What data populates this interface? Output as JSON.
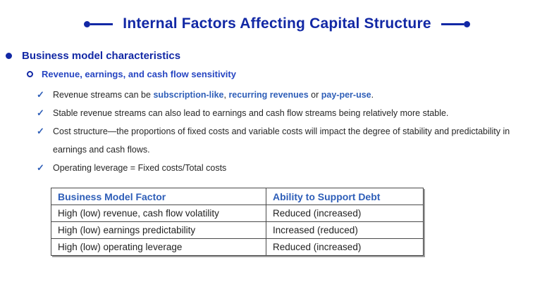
{
  "slide": {
    "title": "Internal Factors Affecting Capital Structure"
  },
  "colors": {
    "title_navy": "#1228A5",
    "subheading_blue": "#2746C2",
    "accent_blue": "#2E5EB8",
    "body_text": "#262626",
    "table_border": "#4A4A4A",
    "table_shadow": "#9E9E9E"
  },
  "icons": {
    "check": "✓",
    "level1_bullet": "filled-circle",
    "level2_bullet": "hollow-circle",
    "title_ornament": "dot-and-line"
  },
  "bullets": {
    "level1": "Business model characteristics",
    "level2": "Revenue, earnings, and cash flow sensitivity",
    "checks": [
      {
        "segments": [
          {
            "t": "Revenue streams can be ",
            "b": false
          },
          {
            "t": "subscription-like",
            "b": true
          },
          {
            "t": ", ",
            "b": false
          },
          {
            "t": "recurring revenues",
            "b": true
          },
          {
            "t": " or ",
            "b": false
          },
          {
            "t": "pay-per-use",
            "b": true
          },
          {
            "t": ".",
            "b": false
          }
        ]
      },
      {
        "segments": [
          {
            "t": "Stable revenue streams can also lead to earnings and cash flow streams being relatively more stable.",
            "b": false
          }
        ]
      },
      {
        "segments": [
          {
            "t": "Cost structure—the proportions of fixed costs and variable costs will impact the degree of stability and predictability in earnings and cash flows.",
            "b": false
          }
        ]
      },
      {
        "segments": [
          {
            "t": "Operating leverage = Fixed costs/Total costs",
            "b": false
          }
        ]
      }
    ]
  },
  "table": {
    "headers": [
      "Business Model Factor",
      "Ability to Support Debt"
    ],
    "rows": [
      [
        "High (low) revenue, cash flow volatility",
        "Reduced (increased)"
      ],
      [
        "High (low) earnings predictability",
        "Increased (reduced)"
      ],
      [
        "High (low) operating leverage",
        "Reduced (increased)"
      ]
    ]
  }
}
